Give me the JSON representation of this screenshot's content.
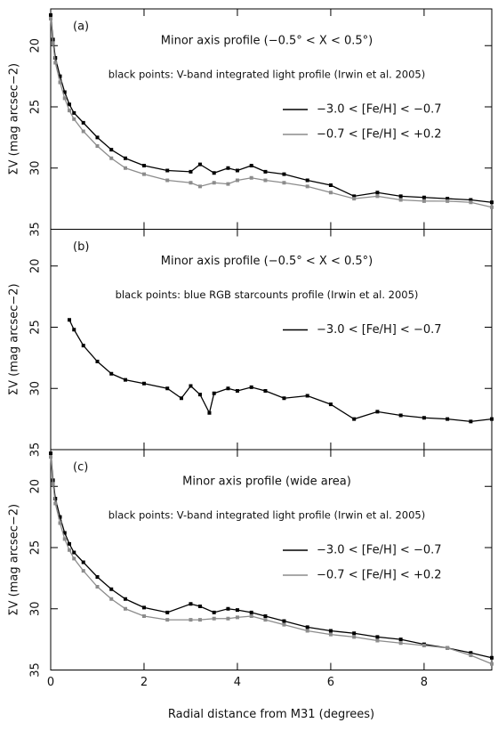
{
  "chart_data": [
    {
      "type": "line",
      "label": "(a)",
      "title": "Minor axis profile (−0.5° < X < 0.5°)",
      "subtitle": "black points: V-band integrated light profile (Irwin et al. 2005)",
      "ylabel": "ΣV (mag arcsec−2)",
      "xlim": [
        0,
        9.45
      ],
      "xticks": [
        0,
        2,
        4,
        6,
        8
      ],
      "ylim": [
        35,
        17
      ],
      "yticks": [
        20,
        25,
        30,
        35
      ],
      "x": [
        0,
        0.05,
        0.1,
        0.2,
        0.3,
        0.4,
        0.5,
        0.7,
        1.0,
        1.3,
        1.6,
        2.0,
        2.5,
        3.0,
        3.2,
        3.5,
        3.8,
        4.0,
        4.3,
        4.6,
        5.0,
        5.5,
        6.0,
        6.5,
        7.0,
        7.5,
        8.0,
        8.5,
        9.0,
        9.45
      ],
      "series": [
        {
          "name": "−3.0 < [Fe/H] < −0.7",
          "color": "#000000",
          "values": [
            17.5,
            19.5,
            21,
            22.5,
            23.8,
            24.8,
            25.5,
            26.3,
            27.5,
            28.5,
            29.2,
            29.8,
            30.2,
            30.3,
            29.7,
            30.4,
            30.0,
            30.2,
            29.8,
            30.3,
            30.5,
            31.0,
            31.4,
            32.3,
            32.0,
            32.3,
            32.4,
            32.5,
            32.6,
            32.8
          ]
        },
        {
          "name": "−0.7 < [Fe/H] < +0.2",
          "color": "#8c8c8c",
          "values": [
            17.8,
            19.8,
            21.4,
            23,
            24.3,
            25.3,
            26,
            27,
            28.2,
            29.2,
            30,
            30.5,
            31,
            31.2,
            31.5,
            31.2,
            31.3,
            31,
            30.8,
            31,
            31.2,
            31.5,
            32,
            32.5,
            32.3,
            32.6,
            32.7,
            32.7,
            32.8,
            33.2
          ]
        }
      ]
    },
    {
      "type": "line",
      "label": "(b)",
      "title": "Minor axis profile (−0.5° < X < 0.5°)",
      "subtitle": "black points: blue RGB starcounts profile (Irwin et al. 2005)",
      "ylabel": "ΣV (mag arcsec−2)",
      "xlim": [
        0,
        9.45
      ],
      "xticks": [
        0,
        2,
        4,
        6,
        8
      ],
      "ylim": [
        35,
        17
      ],
      "yticks": [
        20,
        25,
        30,
        35
      ],
      "x": [
        0.4,
        0.5,
        0.7,
        1.0,
        1.3,
        1.6,
        2.0,
        2.5,
        2.8,
        3.0,
        3.2,
        3.4,
        3.5,
        3.8,
        4.0,
        4.3,
        4.6,
        5.0,
        5.5,
        6.0,
        6.5,
        7.0,
        7.5,
        8.0,
        8.5,
        9.0,
        9.45
      ],
      "series": [
        {
          "name": "−3.0 < [Fe/H] < −0.7",
          "color": "#000000",
          "values": [
            24.4,
            25.2,
            26.5,
            27.8,
            28.8,
            29.3,
            29.6,
            30.0,
            30.8,
            29.8,
            30.5,
            32.0,
            30.4,
            30.0,
            30.2,
            29.9,
            30.2,
            30.8,
            30.6,
            31.3,
            32.5,
            31.9,
            32.2,
            32.4,
            32.5,
            32.7,
            32.5
          ]
        }
      ]
    },
    {
      "type": "line",
      "label": "(c)",
      "title": "Minor axis profile (wide area)",
      "subtitle": "black points: V-band integrated light profile (Irwin et al. 2005)",
      "ylabel": "ΣV (mag arcsec−2)",
      "xlabel": "Radial distance from M31 (degrees)",
      "xlim": [
        0,
        9.45
      ],
      "xticks": [
        0,
        2,
        4,
        6,
        8
      ],
      "ylim": [
        35,
        17
      ],
      "yticks": [
        20,
        25,
        30,
        35
      ],
      "x": [
        0,
        0.05,
        0.1,
        0.2,
        0.3,
        0.4,
        0.5,
        0.7,
        1.0,
        1.3,
        1.6,
        2.0,
        2.5,
        3.0,
        3.2,
        3.5,
        3.8,
        4.0,
        4.3,
        4.6,
        5.0,
        5.5,
        6.0,
        6.5,
        7.0,
        7.5,
        8.0,
        8.5,
        9.0,
        9.45
      ],
      "series": [
        {
          "name": "−3.0 < [Fe/H] < −0.7",
          "color": "#000000",
          "values": [
            17.3,
            19.5,
            21,
            22.5,
            23.8,
            24.7,
            25.4,
            26.2,
            27.4,
            28.4,
            29.2,
            29.9,
            30.3,
            29.6,
            29.8,
            30.3,
            30.0,
            30.1,
            30.3,
            30.6,
            31.0,
            31.5,
            31.8,
            32.0,
            32.3,
            32.5,
            32.9,
            33.2,
            33.6,
            34.0
          ]
        },
        {
          "name": "−0.7 < [Fe/H] < +0.2",
          "color": "#8c8c8c",
          "values": [
            17.6,
            19.8,
            21.4,
            23,
            24.3,
            25.2,
            25.9,
            26.9,
            28.2,
            29.2,
            30,
            30.6,
            30.9,
            30.9,
            30.9,
            30.8,
            30.8,
            30.7,
            30.6,
            30.9,
            31.3,
            31.8,
            32.1,
            32.3,
            32.6,
            32.8,
            33.0,
            33.2,
            33.8,
            34.5
          ]
        }
      ]
    }
  ]
}
